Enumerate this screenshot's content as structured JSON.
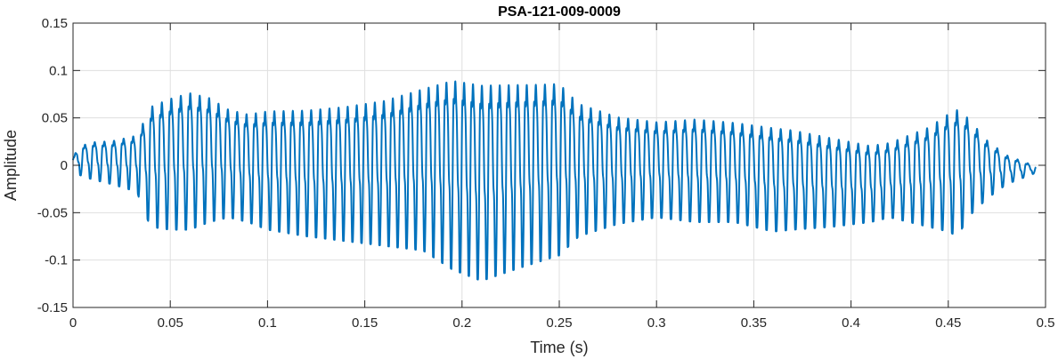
{
  "chart_data": {
    "type": "line",
    "title": "PSA-121-009-0009",
    "xlabel": "Time (s)",
    "ylabel": "Amplitude",
    "xlim": [
      0,
      0.5
    ],
    "ylim": [
      -0.15,
      0.15
    ],
    "grid": true,
    "legend": "none",
    "xticks": [
      0,
      0.05,
      0.1,
      0.15,
      0.2,
      0.25,
      0.3,
      0.35,
      0.4,
      0.45,
      0.5
    ],
    "xtick_labels": [
      "0",
      "0.05",
      "0.1",
      "0.15",
      "0.2",
      "0.25",
      "0.3",
      "0.35",
      "0.4",
      "0.45",
      "0.5"
    ],
    "yticks": [
      -0.15,
      -0.1,
      -0.05,
      0,
      0.05,
      0.1,
      0.15
    ],
    "ytick_labels": [
      "-0.15",
      "-0.1",
      "-0.05",
      "0",
      "0.05",
      "0.1",
      "0.15"
    ],
    "series": [
      {
        "color": "#0072BD",
        "duration_s": 0.495,
        "fundamental_hz": [
          [
            0,
            200
          ],
          [
            0.1,
            210
          ],
          [
            0.2,
            220
          ],
          [
            0.3,
            205
          ],
          [
            0.4,
            200
          ],
          [
            0.495,
            190
          ]
        ],
        "upper_envelope": [
          [
            0,
            0.01
          ],
          [
            0.003,
            0.024
          ],
          [
            0.01,
            0.03
          ],
          [
            0.02,
            0.032
          ],
          [
            0.033,
            0.04
          ],
          [
            0.035,
            0.052
          ],
          [
            0.04,
            0.08
          ],
          [
            0.05,
            0.09
          ],
          [
            0.06,
            0.097
          ],
          [
            0.07,
            0.09
          ],
          [
            0.08,
            0.075
          ],
          [
            0.09,
            0.07
          ],
          [
            0.1,
            0.075
          ],
          [
            0.12,
            0.077
          ],
          [
            0.14,
            0.082
          ],
          [
            0.16,
            0.09
          ],
          [
            0.18,
            0.105
          ],
          [
            0.195,
            0.118
          ],
          [
            0.21,
            0.114
          ],
          [
            0.24,
            0.112
          ],
          [
            0.25,
            0.112
          ],
          [
            0.26,
            0.085
          ],
          [
            0.28,
            0.067
          ],
          [
            0.3,
            0.06
          ],
          [
            0.32,
            0.064
          ],
          [
            0.34,
            0.06
          ],
          [
            0.36,
            0.055
          ],
          [
            0.37,
            0.052
          ],
          [
            0.39,
            0.042
          ],
          [
            0.41,
            0.032
          ],
          [
            0.42,
            0.035
          ],
          [
            0.44,
            0.055
          ],
          [
            0.45,
            0.072
          ],
          [
            0.455,
            0.078
          ],
          [
            0.46,
            0.065
          ],
          [
            0.47,
            0.035
          ],
          [
            0.48,
            0.015
          ],
          [
            0.49,
            0.005
          ],
          [
            0.495,
            0
          ]
        ],
        "lower_envelope": [
          [
            0,
            -0.005
          ],
          [
            0.003,
            -0.01
          ],
          [
            0.01,
            -0.015
          ],
          [
            0.02,
            -0.02
          ],
          [
            0.033,
            -0.028
          ],
          [
            0.035,
            -0.042
          ],
          [
            0.04,
            -0.065
          ],
          [
            0.05,
            -0.068
          ],
          [
            0.06,
            -0.068
          ],
          [
            0.07,
            -0.06
          ],
          [
            0.08,
            -0.055
          ],
          [
            0.09,
            -0.06
          ],
          [
            0.1,
            -0.068
          ],
          [
            0.12,
            -0.075
          ],
          [
            0.14,
            -0.08
          ],
          [
            0.16,
            -0.085
          ],
          [
            0.18,
            -0.09
          ],
          [
            0.195,
            -0.11
          ],
          [
            0.21,
            -0.122
          ],
          [
            0.23,
            -0.108
          ],
          [
            0.25,
            -0.095
          ],
          [
            0.26,
            -0.075
          ],
          [
            0.28,
            -0.062
          ],
          [
            0.3,
            -0.055
          ],
          [
            0.32,
            -0.06
          ],
          [
            0.34,
            -0.06
          ],
          [
            0.36,
            -0.07
          ],
          [
            0.37,
            -0.068
          ],
          [
            0.39,
            -0.065
          ],
          [
            0.41,
            -0.06
          ],
          [
            0.42,
            -0.055
          ],
          [
            0.44,
            -0.065
          ],
          [
            0.45,
            -0.07
          ],
          [
            0.455,
            -0.075
          ],
          [
            0.46,
            -0.055
          ],
          [
            0.47,
            -0.035
          ],
          [
            0.48,
            -0.02
          ],
          [
            0.49,
            -0.012
          ],
          [
            0.495,
            -0.008
          ]
        ]
      }
    ]
  }
}
